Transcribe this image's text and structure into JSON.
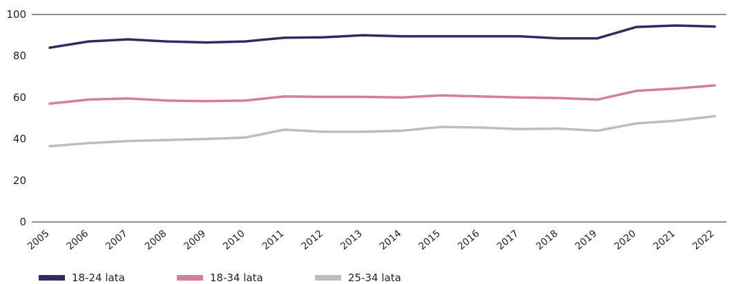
{
  "chart_data": {
    "type": "line",
    "x": [
      "2005",
      "2006",
      "2007",
      "2008",
      "2009",
      "2010",
      "2011",
      "2012",
      "2013",
      "2014",
      "2015",
      "2016",
      "2017",
      "2018",
      "2019",
      "2020",
      "2021",
      "2022"
    ],
    "ylim": [
      0,
      100
    ],
    "yticks": [
      0,
      20,
      40,
      60,
      80,
      100
    ],
    "grid": false,
    "legend_position": "bottom-left",
    "series": [
      {
        "name": "18-24 lata",
        "color": "#2e2a62",
        "values": [
          84.0,
          87.0,
          88.0,
          87.0,
          86.5,
          87.0,
          88.8,
          89.0,
          90.0,
          89.5,
          89.5,
          89.5,
          89.5,
          88.5,
          88.5,
          94.0,
          94.7,
          94.2
        ]
      },
      {
        "name": "18-34 lata",
        "color": "#d97aa2",
        "values": [
          57.0,
          59.0,
          59.5,
          58.5,
          58.2,
          58.5,
          60.5,
          60.3,
          60.3,
          60.0,
          61.0,
          60.5,
          60.0,
          59.7,
          59.0,
          63.2,
          64.3,
          65.8
        ]
      },
      {
        "name": "25-34 lata",
        "color": "#bdbdbf",
        "values": [
          36.5,
          38.0,
          39.0,
          39.5,
          40.0,
          40.7,
          44.5,
          43.5,
          43.5,
          44.0,
          45.8,
          45.5,
          44.8,
          45.0,
          44.0,
          47.5,
          48.8,
          51.0
        ]
      }
    ]
  }
}
